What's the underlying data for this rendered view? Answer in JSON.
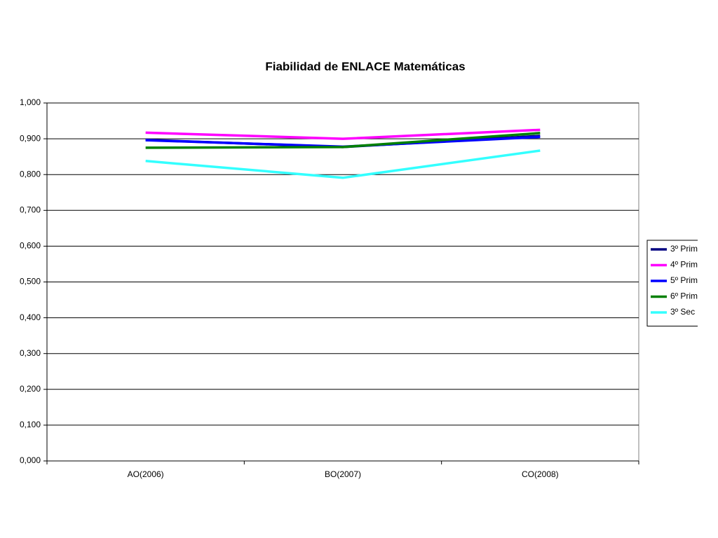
{
  "chart_data": {
    "type": "line",
    "title": "Fiabilidad de ENLACE Matemáticas",
    "categories": [
      "AO(2006)",
      "BO(2007)",
      "CO(2008)"
    ],
    "series": [
      {
        "name": "3º Prim",
        "color": "#000080",
        "values": [
          0.897,
          0.877,
          0.908
        ]
      },
      {
        "name": "4º Prim",
        "color": "#ff00ff",
        "values": [
          0.917,
          0.9,
          0.925
        ]
      },
      {
        "name": "5º Prim",
        "color": "#0000ff",
        "values": [
          0.896,
          0.878,
          0.905
        ]
      },
      {
        "name": "6º Prim",
        "color": "#008000",
        "values": [
          0.875,
          0.877,
          0.916
        ]
      },
      {
        "name": "3º Sec",
        "color": "#33ffff",
        "values": [
          0.838,
          0.791,
          0.867
        ]
      }
    ],
    "ylim": [
      0,
      1
    ],
    "yticks": [
      {
        "value": 0,
        "label": "0,000"
      },
      {
        "value": 0.1,
        "label": "0,100"
      },
      {
        "value": 0.2,
        "label": "0,200"
      },
      {
        "value": 0.3,
        "label": "0,300"
      },
      {
        "value": 0.4,
        "label": "0,400"
      },
      {
        "value": 0.5,
        "label": "0,500"
      },
      {
        "value": 0.6,
        "label": "0,600"
      },
      {
        "value": 0.7,
        "label": "0,700"
      },
      {
        "value": 0.8,
        "label": "0,800"
      },
      {
        "value": 0.9,
        "label": "0,900"
      },
      {
        "value": 1,
        "label": "1,000"
      }
    ],
    "grid": true,
    "legend": "right"
  }
}
